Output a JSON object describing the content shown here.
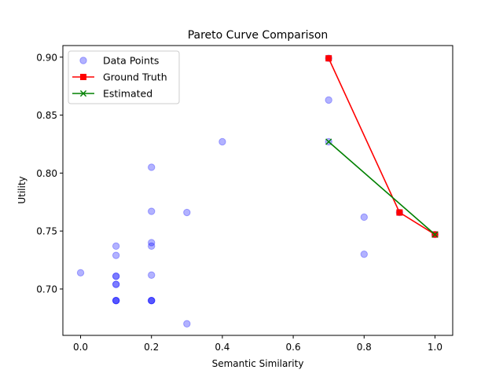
{
  "chart_data": {
    "type": "scatter",
    "title": "Pareto Curve Comparison",
    "xlabel": "Semantic Similarity",
    "ylabel": "Utility",
    "xlim": [
      -0.05,
      1.05
    ],
    "ylim": [
      0.66,
      0.91
    ],
    "xticks": [
      0.0,
      0.2,
      0.4,
      0.6,
      0.8,
      1.0
    ],
    "xtick_labels": [
      "0.0",
      "0.2",
      "0.4",
      "0.6",
      "0.8",
      "1.0"
    ],
    "yticks": [
      0.7,
      0.75,
      0.8,
      0.85,
      0.9
    ],
    "ytick_labels": [
      "0.70",
      "0.75",
      "0.80",
      "0.85",
      "0.90"
    ],
    "grid": false,
    "legend_position": "upper-left",
    "series": [
      {
        "name": "Data Points",
        "kind": "scatter",
        "marker": "circle",
        "color": "#0000ff",
        "alpha": 0.3,
        "points": [
          {
            "x": 0.0,
            "y": 0.714
          },
          {
            "x": 0.1,
            "y": 0.737
          },
          {
            "x": 0.1,
            "y": 0.729
          },
          {
            "x": 0.1,
            "y": 0.711
          },
          {
            "x": 0.1,
            "y": 0.711
          },
          {
            "x": 0.1,
            "y": 0.704
          },
          {
            "x": 0.1,
            "y": 0.704
          },
          {
            "x": 0.1,
            "y": 0.69
          },
          {
            "x": 0.1,
            "y": 0.69
          },
          {
            "x": 0.1,
            "y": 0.69
          },
          {
            "x": 0.2,
            "y": 0.805
          },
          {
            "x": 0.2,
            "y": 0.767
          },
          {
            "x": 0.2,
            "y": 0.74
          },
          {
            "x": 0.2,
            "y": 0.737
          },
          {
            "x": 0.2,
            "y": 0.712
          },
          {
            "x": 0.2,
            "y": 0.69
          },
          {
            "x": 0.2,
            "y": 0.69
          },
          {
            "x": 0.2,
            "y": 0.69
          },
          {
            "x": 0.3,
            "y": 0.766
          },
          {
            "x": 0.3,
            "y": 0.67
          },
          {
            "x": 0.4,
            "y": 0.827
          },
          {
            "x": 0.7,
            "y": 0.899
          },
          {
            "x": 0.7,
            "y": 0.863
          },
          {
            "x": 0.7,
            "y": 0.827
          },
          {
            "x": 0.8,
            "y": 0.762
          },
          {
            "x": 0.8,
            "y": 0.73
          },
          {
            "x": 0.9,
            "y": 0.766
          },
          {
            "x": 1.0,
            "y": 0.747
          }
        ]
      },
      {
        "name": "Ground Truth",
        "kind": "line",
        "marker": "square",
        "color": "#ff0000",
        "points": [
          {
            "x": 0.7,
            "y": 0.899
          },
          {
            "x": 0.9,
            "y": 0.766
          },
          {
            "x": 1.0,
            "y": 0.747
          }
        ]
      },
      {
        "name": "Estimated",
        "kind": "line",
        "marker": "x",
        "color": "#008000",
        "points": [
          {
            "x": 0.7,
            "y": 0.827
          },
          {
            "x": 1.0,
            "y": 0.747
          }
        ]
      }
    ]
  }
}
